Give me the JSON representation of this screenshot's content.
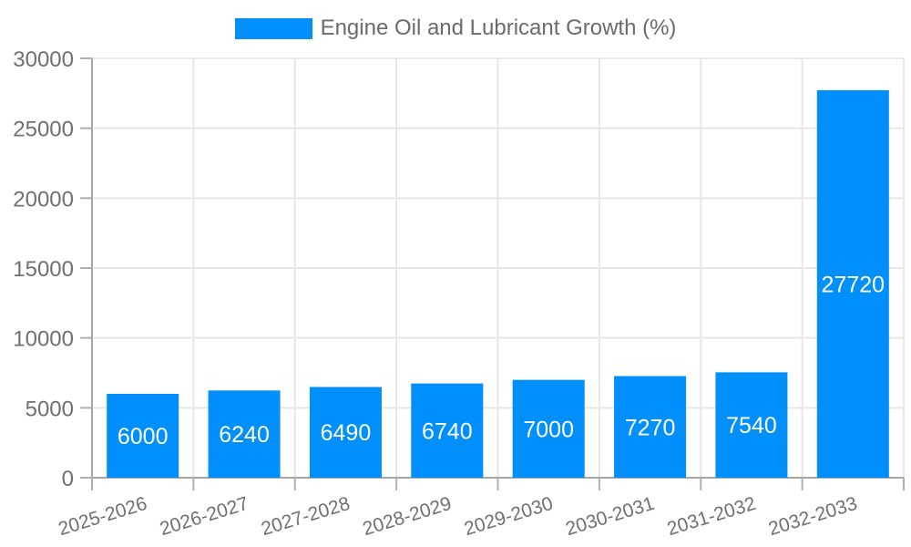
{
  "chart_data": {
    "type": "bar",
    "title": "",
    "legend": {
      "label": "Engine Oil and Lubricant Growth (%)",
      "position": "top-center"
    },
    "categories": [
      "2025-2026",
      "2026-2027",
      "2027-2028",
      "2028-2029",
      "2029-2030",
      "2030-2031",
      "2031-2032",
      "2032-2033"
    ],
    "series": [
      {
        "name": "Engine Oil and Lubricant Growth (%)",
        "values": [
          6000,
          6240,
          6490,
          6740,
          7000,
          7270,
          7540,
          27720
        ]
      }
    ],
    "value_labels": [
      "6000",
      "6240",
      "6490",
      "6740",
      "7000",
      "7270",
      "7540",
      "27720"
    ],
    "xlabel": "",
    "ylabel": "",
    "ylim": [
      0,
      30000
    ],
    "ytick_step": 5000,
    "ytick_labels": [
      "0",
      "5000",
      "10000",
      "15000",
      "20000",
      "25000",
      "30000"
    ],
    "grid": "both",
    "x_label_rotation_deg": -17,
    "colors": {
      "bar": "#008FFB",
      "bar_value_label": "#ffffff",
      "grid_line": "#e7e7e7",
      "axis_line": "#a6a6a6",
      "tick_mark": "#b0b0b0",
      "tick_label": "#707070",
      "legend_text": "#6b6b6b",
      "background": "#ffffff"
    }
  }
}
